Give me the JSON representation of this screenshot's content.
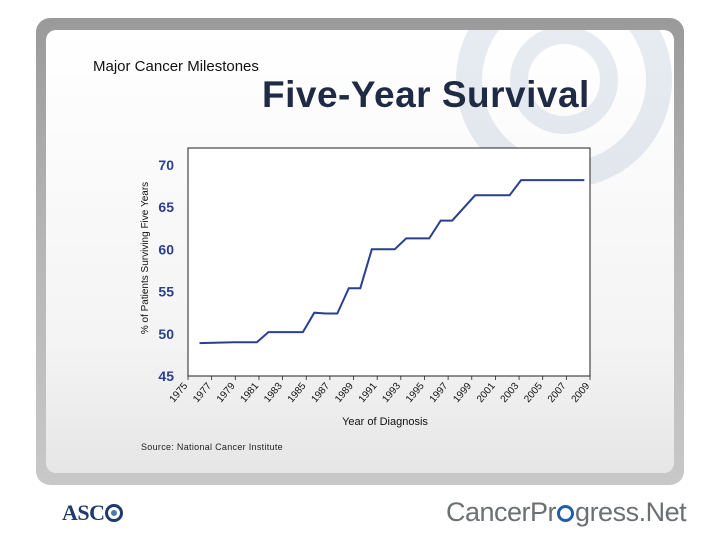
{
  "header": {
    "subtitle": "Major Cancer Milestones",
    "title": "Five-Year Survival"
  },
  "source": "Source: National Cancer Institute",
  "footer": {
    "asco_logo": "ASCO",
    "cancer_progress_logo": "CancerProgress.Net"
  },
  "colors": {
    "line": "#2b3f8f",
    "title": "#1f2a44",
    "frame": "#a8a8a8"
  },
  "chart_data": {
    "type": "line",
    "title": "Five-Year Survival",
    "xlabel": "Year of Diagnosis",
    "ylabel": "% of Patients Surviving Five Years",
    "ylim": [
      45,
      72
    ],
    "yticks": [
      45,
      50,
      55,
      60,
      65,
      70
    ],
    "xlim": [
      1975,
      2010
    ],
    "xticks": [
      "1975",
      "1977",
      "1979",
      "1981",
      "1983",
      "1985",
      "1987",
      "1989",
      "1991",
      "1993",
      "1995",
      "1997",
      "1999",
      "2001",
      "2003",
      "2005",
      "2007",
      "2009"
    ],
    "grid": "horizontal",
    "series": [
      {
        "x": [
          1976,
          1979,
          1981,
          1982,
          1983,
          1985,
          1986,
          1987,
          1988,
          1989,
          1990,
          1991,
          1993,
          1994,
          1995,
          1996,
          1997,
          1998,
          2000,
          2001,
          2003,
          2004,
          2006,
          2008,
          2009.5
        ],
        "values": [
          48.9,
          49.0,
          49.0,
          50.2,
          50.2,
          50.2,
          52.5,
          52.4,
          52.4,
          55.4,
          55.4,
          60.0,
          60.0,
          61.3,
          61.3,
          61.3,
          63.4,
          63.4,
          66.4,
          66.4,
          66.4,
          68.2,
          68.2,
          68.2,
          68.2
        ]
      }
    ]
  }
}
